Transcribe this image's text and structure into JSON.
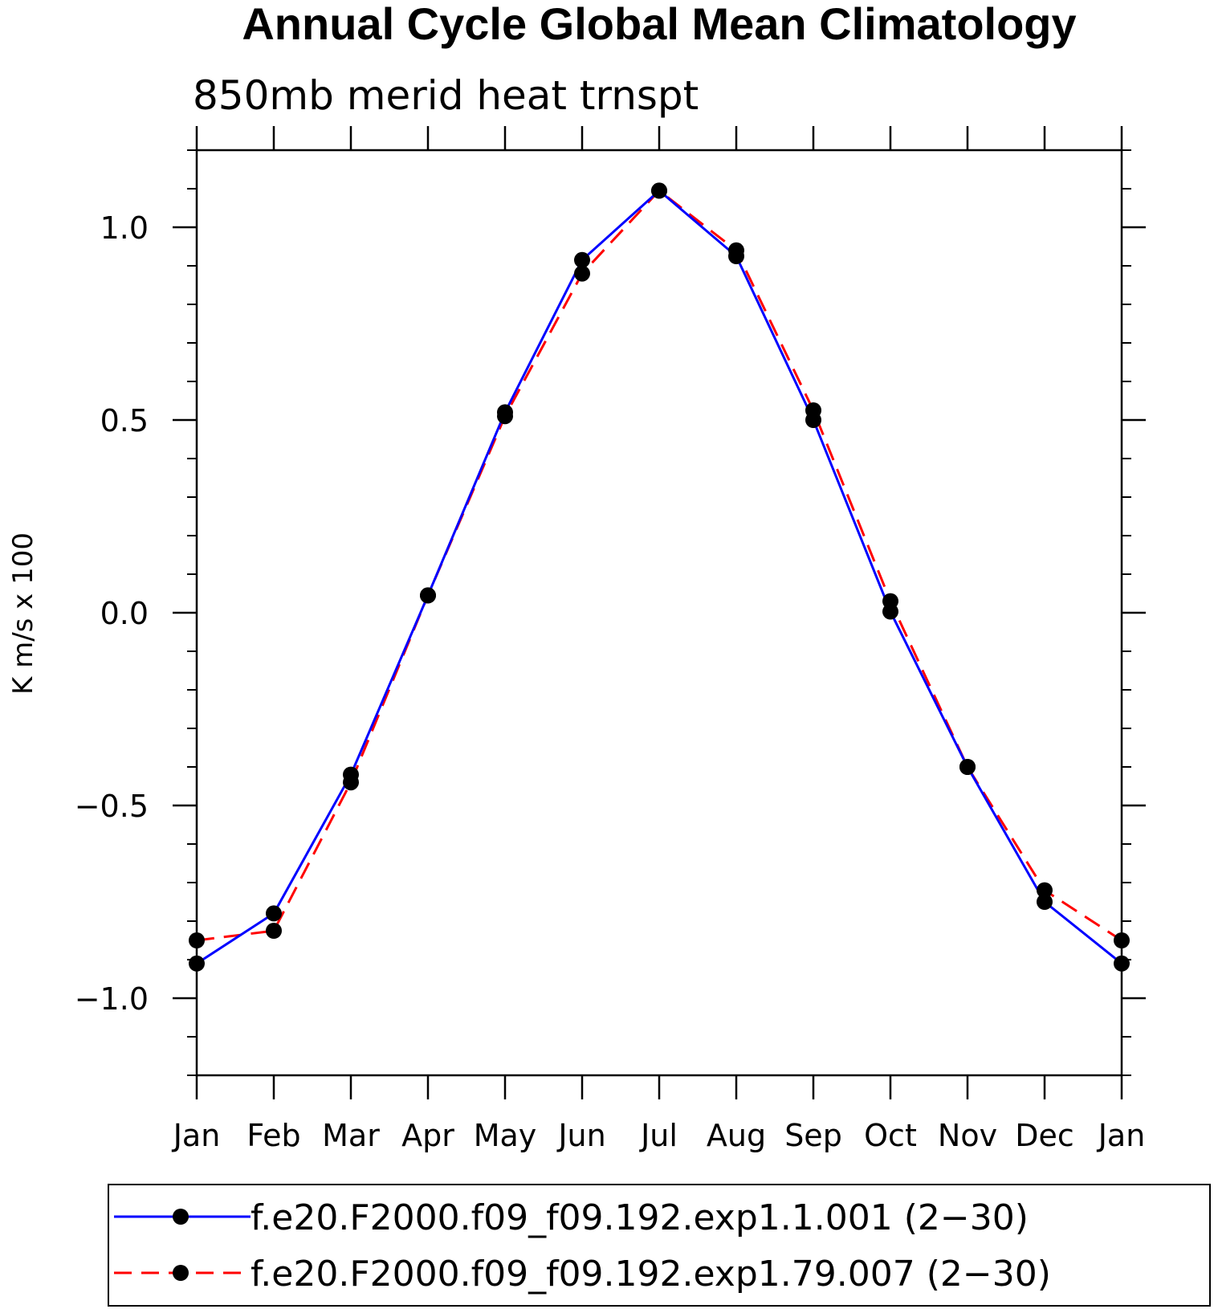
{
  "chart_data": {
    "type": "line",
    "title": "Annual Cycle Global Mean Climatology",
    "subtitle": "850mb merid heat trnspt",
    "ylabel": "K m/s x 100",
    "xlabel": "",
    "categories": [
      "Jan",
      "Feb",
      "Mar",
      "Apr",
      "May",
      "Jun",
      "Jul",
      "Aug",
      "Sep",
      "Oct",
      "Nov",
      "Dec",
      "Jan"
    ],
    "ylim": [
      -1.2,
      1.2
    ],
    "yticks": [
      -1.0,
      -0.5,
      0.0,
      0.5,
      1.0
    ],
    "ytick_labels": [
      "−1.0",
      "−0.5",
      "0.0",
      "0.5",
      "1.0"
    ],
    "yminor_step": 0.1,
    "grid": false,
    "legend_position": "bottom",
    "series": [
      {
        "name": "f.e20.F2000.f09_f09.192.exp1.1.001 (2−30)",
        "color": "#0000ff",
        "dash": "solid",
        "marker": "filled-circle",
        "values": [
          -0.91,
          -0.78,
          -0.42,
          0.045,
          0.52,
          0.915,
          1.095,
          0.925,
          0.5,
          0.003,
          -0.4,
          -0.75,
          -0.91
        ]
      },
      {
        "name": "f.e20.F2000.f09_f09.192.exp1.79.007 (2−30)",
        "color": "#ff0000",
        "dash": "dashed",
        "marker": "filled-circle",
        "values": [
          -0.85,
          -0.825,
          -0.44,
          0.045,
          0.51,
          0.88,
          1.095,
          0.94,
          0.525,
          0.03,
          -0.4,
          -0.72,
          -0.85
        ]
      }
    ]
  }
}
